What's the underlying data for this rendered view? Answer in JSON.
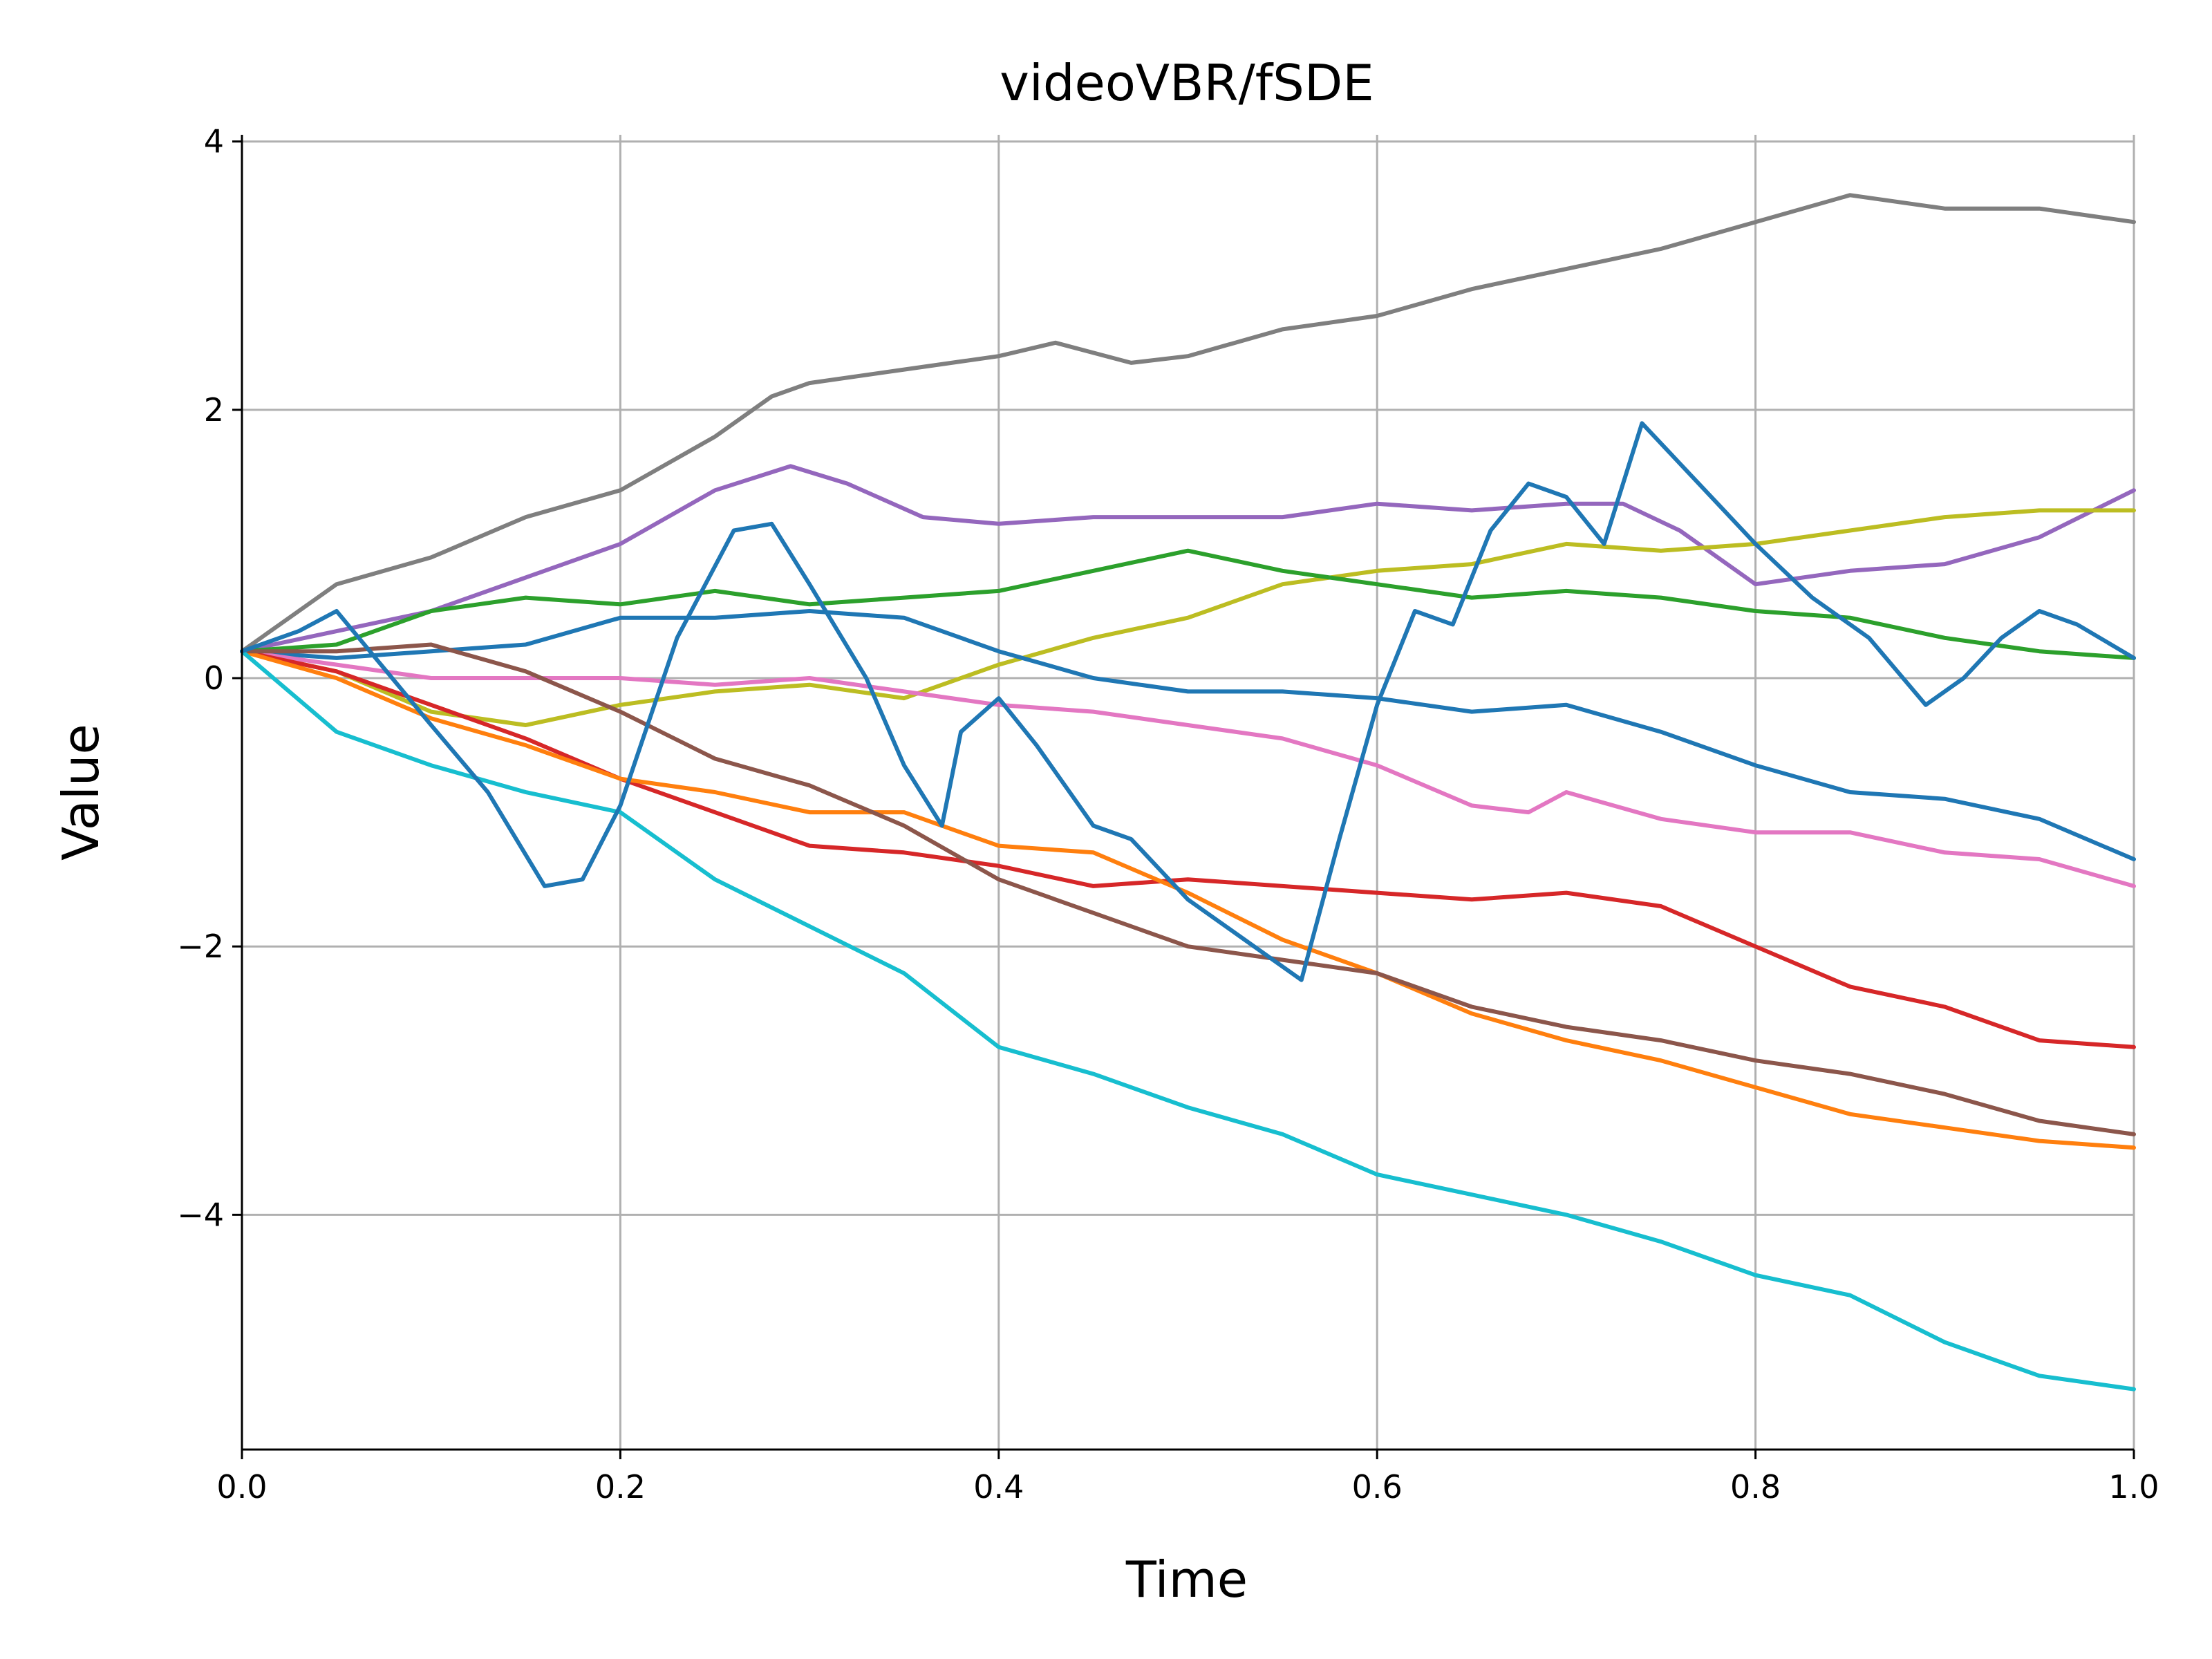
{
  "chart_data": {
    "type": "line",
    "title": "videoVBR/fSDE",
    "xlabel": "Time",
    "ylabel": "Value",
    "xlim": [
      0.0,
      1.0
    ],
    "ylim": [
      -5.75,
      4.05
    ],
    "xticks": [
      0.0,
      0.2,
      0.4,
      0.6,
      0.8,
      1.0
    ],
    "xtick_labels": [
      "0.0",
      "0.2",
      "0.4",
      "0.6",
      "0.8",
      "1.0"
    ],
    "yticks": [
      4,
      2,
      0,
      -2,
      -4
    ],
    "ytick_labels": [
      "4",
      "2",
      "0",
      "−2",
      "−4"
    ],
    "grid": true,
    "legend": "none",
    "series": [
      {
        "color": "#7f7f7f",
        "points": [
          [
            0,
            0.2
          ],
          [
            0.05,
            0.7
          ],
          [
            0.1,
            0.9
          ],
          [
            0.15,
            1.2
          ],
          [
            0.2,
            1.4
          ],
          [
            0.25,
            1.8
          ],
          [
            0.28,
            2.1
          ],
          [
            0.3,
            2.2
          ],
          [
            0.35,
            2.3
          ],
          [
            0.4,
            2.4
          ],
          [
            0.43,
            2.5
          ],
          [
            0.47,
            2.35
          ],
          [
            0.5,
            2.4
          ],
          [
            0.55,
            2.6
          ],
          [
            0.6,
            2.7
          ],
          [
            0.65,
            2.9
          ],
          [
            0.7,
            3.05
          ],
          [
            0.75,
            3.2
          ],
          [
            0.8,
            3.4
          ],
          [
            0.85,
            3.6
          ],
          [
            0.9,
            3.5
          ],
          [
            0.95,
            3.5
          ],
          [
            1.0,
            3.4
          ]
        ]
      },
      {
        "color": "#9467bd",
        "points": [
          [
            0,
            0.2
          ],
          [
            0.05,
            0.35
          ],
          [
            0.1,
            0.5
          ],
          [
            0.15,
            0.75
          ],
          [
            0.2,
            1.0
          ],
          [
            0.25,
            1.4
          ],
          [
            0.29,
            1.58
          ],
          [
            0.32,
            1.45
          ],
          [
            0.36,
            1.2
          ],
          [
            0.4,
            1.15
          ],
          [
            0.45,
            1.2
          ],
          [
            0.5,
            1.2
          ],
          [
            0.55,
            1.2
          ],
          [
            0.6,
            1.3
          ],
          [
            0.65,
            1.25
          ],
          [
            0.7,
            1.3
          ],
          [
            0.73,
            1.3
          ],
          [
            0.76,
            1.1
          ],
          [
            0.8,
            0.7
          ],
          [
            0.85,
            0.8
          ],
          [
            0.9,
            0.85
          ],
          [
            0.95,
            1.05
          ],
          [
            1.0,
            1.4
          ]
        ]
      },
      {
        "color": "#bcbd22",
        "points": [
          [
            0,
            0.2
          ],
          [
            0.05,
            0.05
          ],
          [
            0.1,
            -0.25
          ],
          [
            0.15,
            -0.35
          ],
          [
            0.2,
            -0.2
          ],
          [
            0.25,
            -0.1
          ],
          [
            0.3,
            -0.05
          ],
          [
            0.35,
            -0.15
          ],
          [
            0.4,
            0.1
          ],
          [
            0.45,
            0.3
          ],
          [
            0.5,
            0.45
          ],
          [
            0.55,
            0.7
          ],
          [
            0.6,
            0.8
          ],
          [
            0.65,
            0.85
          ],
          [
            0.7,
            1.0
          ],
          [
            0.75,
            0.95
          ],
          [
            0.8,
            1.0
          ],
          [
            0.85,
            1.1
          ],
          [
            0.9,
            1.2
          ],
          [
            0.95,
            1.25
          ],
          [
            1.0,
            1.25
          ]
        ]
      },
      {
        "color": "#2ca02c",
        "points": [
          [
            0,
            0.2
          ],
          [
            0.05,
            0.25
          ],
          [
            0.1,
            0.5
          ],
          [
            0.15,
            0.6
          ],
          [
            0.2,
            0.55
          ],
          [
            0.25,
            0.65
          ],
          [
            0.3,
            0.55
          ],
          [
            0.35,
            0.6
          ],
          [
            0.4,
            0.65
          ],
          [
            0.45,
            0.8
          ],
          [
            0.5,
            0.95
          ],
          [
            0.55,
            0.8
          ],
          [
            0.6,
            0.7
          ],
          [
            0.65,
            0.6
          ],
          [
            0.7,
            0.65
          ],
          [
            0.75,
            0.6
          ],
          [
            0.8,
            0.5
          ],
          [
            0.85,
            0.45
          ],
          [
            0.9,
            0.3
          ],
          [
            0.95,
            0.2
          ],
          [
            1.0,
            0.15
          ]
        ]
      },
      {
        "color": "#1f77b4",
        "points": [
          [
            0,
            0.2
          ],
          [
            0.05,
            0.15
          ],
          [
            0.1,
            0.2
          ],
          [
            0.15,
            0.25
          ],
          [
            0.2,
            0.45
          ],
          [
            0.25,
            0.45
          ],
          [
            0.3,
            0.5
          ],
          [
            0.35,
            0.45
          ],
          [
            0.4,
            0.2
          ],
          [
            0.45,
            0.0
          ],
          [
            0.5,
            -0.1
          ],
          [
            0.55,
            -0.1
          ],
          [
            0.6,
            -0.15
          ],
          [
            0.65,
            -0.25
          ],
          [
            0.7,
            -0.2
          ],
          [
            0.75,
            -0.4
          ],
          [
            0.8,
            -0.65
          ],
          [
            0.85,
            -0.85
          ],
          [
            0.9,
            -0.9
          ],
          [
            0.95,
            -1.05
          ],
          [
            1.0,
            -1.35
          ]
        ]
      },
      {
        "color": "#e377c2",
        "points": [
          [
            0,
            0.2
          ],
          [
            0.05,
            0.1
          ],
          [
            0.1,
            0.0
          ],
          [
            0.15,
            0.0
          ],
          [
            0.2,
            0.0
          ],
          [
            0.25,
            -0.05
          ],
          [
            0.3,
            0.0
          ],
          [
            0.35,
            -0.1
          ],
          [
            0.4,
            -0.2
          ],
          [
            0.45,
            -0.25
          ],
          [
            0.5,
            -0.35
          ],
          [
            0.55,
            -0.45
          ],
          [
            0.6,
            -0.65
          ],
          [
            0.65,
            -0.95
          ],
          [
            0.68,
            -1.0
          ],
          [
            0.7,
            -0.85
          ],
          [
            0.75,
            -1.05
          ],
          [
            0.8,
            -1.15
          ],
          [
            0.85,
            -1.15
          ],
          [
            0.9,
            -1.3
          ],
          [
            0.95,
            -1.35
          ],
          [
            1.0,
            -1.55
          ]
        ]
      },
      {
        "color": "#d62728",
        "points": [
          [
            0,
            0.2
          ],
          [
            0.05,
            0.05
          ],
          [
            0.1,
            -0.2
          ],
          [
            0.15,
            -0.45
          ],
          [
            0.2,
            -0.75
          ],
          [
            0.25,
            -1.0
          ],
          [
            0.3,
            -1.25
          ],
          [
            0.35,
            -1.3
          ],
          [
            0.4,
            -1.4
          ],
          [
            0.45,
            -1.55
          ],
          [
            0.5,
            -1.5
          ],
          [
            0.55,
            -1.55
          ],
          [
            0.6,
            -1.6
          ],
          [
            0.65,
            -1.65
          ],
          [
            0.7,
            -1.6
          ],
          [
            0.75,
            -1.7
          ],
          [
            0.8,
            -2.0
          ],
          [
            0.85,
            -2.3
          ],
          [
            0.9,
            -2.45
          ],
          [
            0.95,
            -2.7
          ],
          [
            1.0,
            -2.75
          ]
        ]
      },
      {
        "color": "#ff7f0e",
        "points": [
          [
            0,
            0.2
          ],
          [
            0.05,
            0.0
          ],
          [
            0.1,
            -0.3
          ],
          [
            0.15,
            -0.5
          ],
          [
            0.2,
            -0.75
          ],
          [
            0.25,
            -0.85
          ],
          [
            0.3,
            -1.0
          ],
          [
            0.35,
            -1.0
          ],
          [
            0.4,
            -1.25
          ],
          [
            0.45,
            -1.3
          ],
          [
            0.5,
            -1.6
          ],
          [
            0.55,
            -1.95
          ],
          [
            0.6,
            -2.2
          ],
          [
            0.65,
            -2.5
          ],
          [
            0.7,
            -2.7
          ],
          [
            0.75,
            -2.85
          ],
          [
            0.8,
            -3.05
          ],
          [
            0.85,
            -3.25
          ],
          [
            0.9,
            -3.35
          ],
          [
            0.95,
            -3.45
          ],
          [
            1.0,
            -3.5
          ]
        ]
      },
      {
        "color": "#8c564b",
        "points": [
          [
            0,
            0.2
          ],
          [
            0.05,
            0.2
          ],
          [
            0.1,
            0.25
          ],
          [
            0.15,
            0.05
          ],
          [
            0.2,
            -0.25
          ],
          [
            0.25,
            -0.6
          ],
          [
            0.3,
            -0.8
          ],
          [
            0.35,
            -1.1
          ],
          [
            0.4,
            -1.5
          ],
          [
            0.45,
            -1.75
          ],
          [
            0.5,
            -2.0
          ],
          [
            0.55,
            -2.1
          ],
          [
            0.6,
            -2.2
          ],
          [
            0.65,
            -2.45
          ],
          [
            0.7,
            -2.6
          ],
          [
            0.75,
            -2.7
          ],
          [
            0.8,
            -2.85
          ],
          [
            0.85,
            -2.95
          ],
          [
            0.9,
            -3.1
          ],
          [
            0.95,
            -3.3
          ],
          [
            1.0,
            -3.4
          ]
        ]
      },
      {
        "color": "#17becf",
        "points": [
          [
            0,
            0.2
          ],
          [
            0.05,
            -0.4
          ],
          [
            0.1,
            -0.65
          ],
          [
            0.15,
            -0.85
          ],
          [
            0.2,
            -1.0
          ],
          [
            0.25,
            -1.5
          ],
          [
            0.3,
            -1.85
          ],
          [
            0.35,
            -2.2
          ],
          [
            0.4,
            -2.75
          ],
          [
            0.45,
            -2.95
          ],
          [
            0.5,
            -3.2
          ],
          [
            0.55,
            -3.4
          ],
          [
            0.6,
            -3.7
          ],
          [
            0.65,
            -3.85
          ],
          [
            0.7,
            -4.0
          ],
          [
            0.75,
            -4.2
          ],
          [
            0.8,
            -4.45
          ],
          [
            0.85,
            -4.6
          ],
          [
            0.9,
            -4.95
          ],
          [
            0.95,
            -5.2
          ],
          [
            1.0,
            -5.3
          ]
        ]
      },
      {
        "color": "#1f77b4",
        "points": [
          [
            0,
            0.2
          ],
          [
            0.03,
            0.35
          ],
          [
            0.05,
            0.5
          ],
          [
            0.1,
            -0.35
          ],
          [
            0.13,
            -0.85
          ],
          [
            0.16,
            -1.55
          ],
          [
            0.18,
            -1.5
          ],
          [
            0.2,
            -0.95
          ],
          [
            0.23,
            0.3
          ],
          [
            0.26,
            1.1
          ],
          [
            0.28,
            1.15
          ],
          [
            0.3,
            0.7
          ],
          [
            0.33,
            0.0
          ],
          [
            0.35,
            -0.65
          ],
          [
            0.37,
            -1.1
          ],
          [
            0.38,
            -0.4
          ],
          [
            0.4,
            -0.15
          ],
          [
            0.42,
            -0.5
          ],
          [
            0.45,
            -1.1
          ],
          [
            0.47,
            -1.2
          ],
          [
            0.5,
            -1.65
          ],
          [
            0.53,
            -1.95
          ],
          [
            0.56,
            -2.25
          ],
          [
            0.58,
            -1.2
          ],
          [
            0.6,
            -0.2
          ],
          [
            0.62,
            0.5
          ],
          [
            0.64,
            0.4
          ],
          [
            0.66,
            1.1
          ],
          [
            0.68,
            1.45
          ],
          [
            0.7,
            1.35
          ],
          [
            0.72,
            1.0
          ],
          [
            0.74,
            1.9
          ],
          [
            0.76,
            1.6
          ],
          [
            0.78,
            1.3
          ],
          [
            0.8,
            1.0
          ],
          [
            0.83,
            0.6
          ],
          [
            0.86,
            0.3
          ],
          [
            0.89,
            -0.2
          ],
          [
            0.91,
            0.0
          ],
          [
            0.93,
            0.3
          ],
          [
            0.95,
            0.5
          ],
          [
            0.97,
            0.4
          ],
          [
            1.0,
            0.15
          ]
        ]
      }
    ]
  }
}
